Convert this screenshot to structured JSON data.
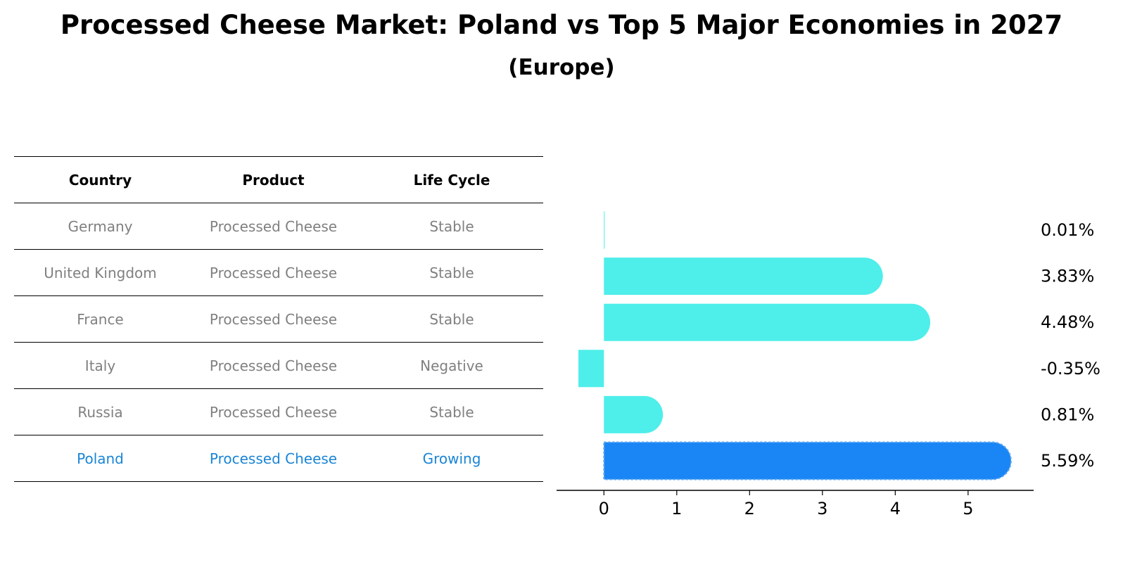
{
  "title": "Processed Cheese Market: Poland vs Top 5 Major Economies in 2027",
  "subtitle": "(Europe)",
  "table": {
    "headers": [
      "Country",
      "Product",
      "Life Cycle"
    ],
    "rows": [
      {
        "country": "Germany",
        "product": "Processed Cheese",
        "life_cycle": "Stable"
      },
      {
        "country": "United Kingdom",
        "product": "Processed Cheese",
        "life_cycle": "Stable"
      },
      {
        "country": "France",
        "product": "Processed Cheese",
        "life_cycle": "Stable"
      },
      {
        "country": "Italy",
        "product": "Processed Cheese",
        "life_cycle": "Negative"
      },
      {
        "country": "Russia",
        "product": "Processed Cheese",
        "life_cycle": "Stable"
      },
      {
        "country": "Poland",
        "product": "Processed Cheese",
        "life_cycle": "Growing"
      }
    ]
  },
  "colors": {
    "bar": "#4eeeea",
    "highlight_bar": "#1a85f5",
    "muted_text": "#808080",
    "highlight_text": "#1a85d6"
  },
  "chart_data": {
    "type": "bar",
    "orientation": "horizontal",
    "categories": [
      "Germany",
      "United Kingdom",
      "France",
      "Italy",
      "Russia",
      "Poland"
    ],
    "values": [
      0.01,
      3.83,
      4.48,
      -0.35,
      0.81,
      5.59
    ],
    "value_labels": [
      "0.01%",
      "3.83%",
      "4.48%",
      "-0.35%",
      "0.81%",
      "5.59%"
    ],
    "highlight": "Poland",
    "xlim": [
      -0.65,
      5.9
    ],
    "xticks": [
      0,
      1,
      2,
      3,
      4,
      5
    ],
    "xticklabels": [
      "0",
      "1",
      "2",
      "3",
      "4",
      "5"
    ],
    "unit": "%",
    "title": "",
    "xlabel": "",
    "ylabel": ""
  }
}
